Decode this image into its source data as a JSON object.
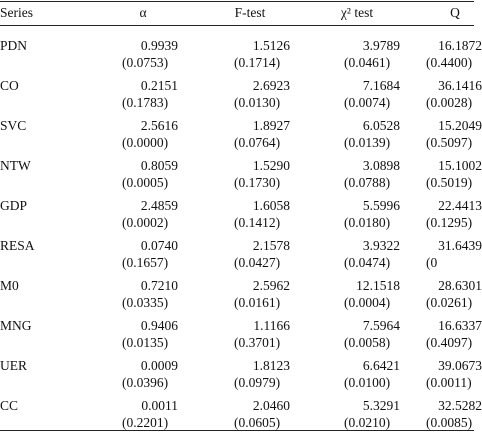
{
  "table": {
    "header": [
      "Series",
      "α",
      "F-test",
      "χ² test",
      "Q"
    ],
    "rows": [
      [
        "PDN",
        "0.9939",
        "(0.0753)",
        "1.5126",
        "(0.1714)",
        "3.9789",
        "(0.0461)",
        "16.1872",
        "(0.4400)"
      ],
      [
        "CO",
        "0.2151",
        "(0.1783)",
        "2.6923",
        "(0.0130)",
        "7.1684",
        "(0.0074)",
        "36.1416",
        "(0.0028)"
      ],
      [
        "SVC",
        "2.5616",
        "(0.0000)",
        "1.8927",
        "(0.0764)",
        "6.0528",
        "(0.0139)",
        "15.2049",
        "(0.5097)"
      ],
      [
        "NTW",
        "0.8059",
        "(0.0005)",
        "1.5290",
        "(0.1730)",
        "3.0898",
        "(0.0788)",
        "15.1002",
        "(0.5019)"
      ],
      [
        "GDP",
        "2.4859",
        "(0.0002)",
        "1.6058",
        "(0.1412)",
        "5.5996",
        "(0.0180)",
        "22.4413",
        "(0.1295)"
      ],
      [
        "RESA",
        "0.0740",
        "(0.1657)",
        "2.1578",
        "(0.0427)",
        "3.9322",
        "(0.0474)",
        "31.6439",
        "(0"
      ],
      [
        "M0",
        "0.7210",
        "(0.0335)",
        "2.5962",
        "(0.0161)",
        "12.1518",
        "(0.0004)",
        "28.6301",
        "(0.0261)"
      ],
      [
        "MNG",
        "0.9406",
        "(0.0135)",
        "1.1166",
        "(0.3701)",
        "7.5964",
        "(0.0058)",
        "16.6337",
        "(0.4097)"
      ],
      [
        "UER",
        "0.0009",
        "(0.0396)",
        "1.8123",
        "(0.0979)",
        "6.6421",
        "(0.0100)",
        "39.0673",
        "(0.0011)"
      ],
      [
        "CC",
        "0.0011",
        "(0.2201)",
        "2.0460",
        "(0.0605)",
        "5.3291",
        "(0.0210)",
        "32.5282",
        "(0.0085)"
      ]
    ]
  }
}
